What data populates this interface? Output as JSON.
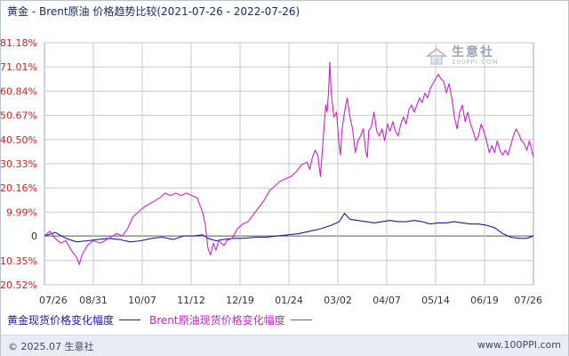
{
  "title": "黄金 - Brent原油 价格趋势比较(2021-07-26 - 2022-07-26)",
  "watermark": {
    "text": "生意社",
    "sub": "100PPI.COM"
  },
  "footer": {
    "copyright": "© 2025.07 生意社",
    "site": "www.100PPI.com"
  },
  "colors": {
    "gold": "#1a1aa6",
    "brent": "#cc22cc",
    "grid": "#c8c8c8",
    "axis_text": "#cc2222",
    "zero_text": "#333333"
  },
  "chart_data": {
    "type": "line",
    "title": "黄金 - Brent原油 价格趋势比较(2021-07-26 - 2022-07-26)",
    "ylim": [
      -20.52,
      81.18
    ],
    "y_ticks": [
      "81.18%",
      "71.01%",
      "60.84%",
      "50.67%",
      "40.50%",
      "30.33%",
      "20.16%",
      "9.99%",
      "0",
      "-10.35%",
      "-20.52%"
    ],
    "y_tick_values": [
      81.18,
      71.01,
      60.84,
      50.67,
      40.5,
      30.33,
      20.16,
      9.99,
      0,
      -10.35,
      -20.52
    ],
    "x_ticks": [
      "07/26",
      "08/31",
      "10/07",
      "11/12",
      "12/19",
      "01/24",
      "03/02",
      "04/07",
      "05/14",
      "06/19",
      "07/26"
    ],
    "x_range_days": [
      0,
      365
    ],
    "grid": true,
    "legend_position": "bottom",
    "series": [
      {
        "name": "黄金现货价格变化幅度",
        "color": "#1a1aa6",
        "points": [
          [
            0,
            0
          ],
          [
            8,
            1.5
          ],
          [
            16,
            -1
          ],
          [
            24,
            -2.5
          ],
          [
            32,
            -2
          ],
          [
            40,
            -1.5
          ],
          [
            48,
            -1
          ],
          [
            56,
            -1.5
          ],
          [
            64,
            -2.5
          ],
          [
            72,
            -2
          ],
          [
            80,
            -1
          ],
          [
            88,
            -0.5
          ],
          [
            96,
            -1.5
          ],
          [
            104,
            0
          ],
          [
            112,
            0
          ],
          [
            118,
            0.5
          ],
          [
            122,
            -1
          ],
          [
            128,
            -2
          ],
          [
            134,
            -1.5
          ],
          [
            140,
            -1
          ],
          [
            146,
            -1
          ],
          [
            152,
            -0.8
          ],
          [
            158,
            -0.5
          ],
          [
            166,
            -0.5
          ],
          [
            174,
            0
          ],
          [
            182,
            0.5
          ],
          [
            190,
            1
          ],
          [
            198,
            2
          ],
          [
            206,
            3
          ],
          [
            214,
            4.5
          ],
          [
            220,
            6
          ],
          [
            224,
            9.5
          ],
          [
            228,
            7
          ],
          [
            234,
            6.5
          ],
          [
            240,
            6
          ],
          [
            246,
            5.5
          ],
          [
            252,
            6
          ],
          [
            258,
            6.5
          ],
          [
            264,
            6
          ],
          [
            270,
            6
          ],
          [
            276,
            6.5
          ],
          [
            282,
            6
          ],
          [
            288,
            5
          ],
          [
            294,
            5.5
          ],
          [
            300,
            5.5
          ],
          [
            306,
            6
          ],
          [
            312,
            5.5
          ],
          [
            318,
            5
          ],
          [
            324,
            5
          ],
          [
            330,
            4.5
          ],
          [
            336,
            3.5
          ],
          [
            342,
            1
          ],
          [
            348,
            -0.5
          ],
          [
            354,
            -1
          ],
          [
            360,
            -1
          ],
          [
            365,
            0
          ]
        ]
      },
      {
        "name": "Brent原油现货价格变化幅度",
        "color": "#cc22cc",
        "points": [
          [
            0,
            0
          ],
          [
            4,
            2
          ],
          [
            8,
            -1
          ],
          [
            12,
            -3
          ],
          [
            16,
            -2
          ],
          [
            20,
            -6
          ],
          [
            24,
            -9
          ],
          [
            26,
            -12
          ],
          [
            28,
            -8
          ],
          [
            32,
            -4
          ],
          [
            36,
            -2
          ],
          [
            42,
            -3
          ],
          [
            48,
            -1
          ],
          [
            54,
            1
          ],
          [
            58,
            0
          ],
          [
            62,
            3
          ],
          [
            66,
            8
          ],
          [
            70,
            10
          ],
          [
            74,
            12
          ],
          [
            80,
            14
          ],
          [
            86,
            16
          ],
          [
            90,
            18
          ],
          [
            94,
            17
          ],
          [
            98,
            18
          ],
          [
            102,
            17
          ],
          [
            106,
            18
          ],
          [
            110,
            17
          ],
          [
            114,
            16
          ],
          [
            118,
            10
          ],
          [
            120,
            5
          ],
          [
            122,
            -5
          ],
          [
            124,
            -8
          ],
          [
            126,
            -3
          ],
          [
            128,
            -6
          ],
          [
            130,
            -2
          ],
          [
            134,
            -4
          ],
          [
            136,
            -2
          ],
          [
            140,
            -1
          ],
          [
            144,
            3
          ],
          [
            148,
            5
          ],
          [
            152,
            6
          ],
          [
            156,
            9
          ],
          [
            160,
            12
          ],
          [
            164,
            15
          ],
          [
            168,
            19
          ],
          [
            172,
            21
          ],
          [
            176,
            23
          ],
          [
            180,
            24
          ],
          [
            184,
            25
          ],
          [
            188,
            27
          ],
          [
            192,
            30
          ],
          [
            196,
            31
          ],
          [
            198,
            28
          ],
          [
            200,
            33
          ],
          [
            202,
            36
          ],
          [
            204,
            34
          ],
          [
            206,
            25
          ],
          [
            208,
            40
          ],
          [
            210,
            55
          ],
          [
            211,
            52
          ],
          [
            212,
            60
          ],
          [
            213,
            73
          ],
          [
            214,
            60
          ],
          [
            215,
            55
          ],
          [
            216,
            50
          ],
          [
            218,
            52
          ],
          [
            220,
            38
          ],
          [
            221,
            34
          ],
          [
            222,
            44
          ],
          [
            224,
            52
          ],
          [
            226,
            58
          ],
          [
            228,
            50
          ],
          [
            230,
            45
          ],
          [
            232,
            35
          ],
          [
            234,
            40
          ],
          [
            236,
            42
          ],
          [
            238,
            45
          ],
          [
            240,
            35
          ],
          [
            241,
            33
          ],
          [
            242,
            44
          ],
          [
            244,
            46
          ],
          [
            246,
            52
          ],
          [
            248,
            44
          ],
          [
            250,
            42
          ],
          [
            252,
            45
          ],
          [
            254,
            40
          ],
          [
            256,
            47
          ],
          [
            258,
            44
          ],
          [
            260,
            48
          ],
          [
            262,
            44
          ],
          [
            264,
            42
          ],
          [
            266,
            47
          ],
          [
            268,
            50
          ],
          [
            270,
            47
          ],
          [
            272,
            53
          ],
          [
            274,
            55
          ],
          [
            276,
            52
          ],
          [
            278,
            55
          ],
          [
            280,
            58
          ],
          [
            282,
            56
          ],
          [
            284,
            60
          ],
          [
            286,
            58
          ],
          [
            288,
            62
          ],
          [
            290,
            64
          ],
          [
            292,
            66
          ],
          [
            294,
            68
          ],
          [
            296,
            66
          ],
          [
            298,
            65
          ],
          [
            300,
            60
          ],
          [
            302,
            64
          ],
          [
            304,
            58
          ],
          [
            306,
            50
          ],
          [
            308,
            45
          ],
          [
            310,
            52
          ],
          [
            312,
            55
          ],
          [
            314,
            48
          ],
          [
            316,
            52
          ],
          [
            318,
            47
          ],
          [
            320,
            44
          ],
          [
            322,
            40
          ],
          [
            324,
            42
          ],
          [
            326,
            47
          ],
          [
            328,
            44
          ],
          [
            330,
            40
          ],
          [
            332,
            35
          ],
          [
            334,
            38
          ],
          [
            336,
            35
          ],
          [
            338,
            40
          ],
          [
            340,
            36
          ],
          [
            342,
            34
          ],
          [
            344,
            36
          ],
          [
            346,
            34
          ],
          [
            348,
            38
          ],
          [
            350,
            42
          ],
          [
            352,
            45
          ],
          [
            354,
            43
          ],
          [
            356,
            40
          ],
          [
            358,
            39
          ],
          [
            360,
            36
          ],
          [
            362,
            40
          ],
          [
            365,
            33
          ]
        ]
      }
    ]
  }
}
